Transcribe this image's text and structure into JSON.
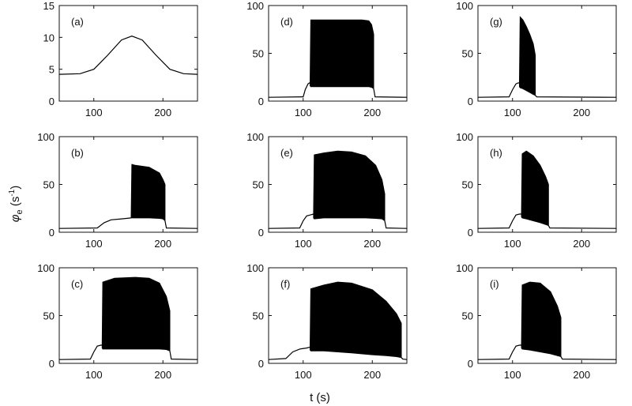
{
  "figure": {
    "ylabel": {
      "phi": "φ",
      "sub": "e",
      "unit_open": " (s",
      "exp": "-1",
      "unit_close": ")"
    },
    "xlabel": "t (s)"
  },
  "chart_data": [
    {
      "panel": "(a)",
      "type": "line",
      "xlim": [
        50,
        250
      ],
      "ylim": [
        0,
        15
      ],
      "xticks": [
        "100",
        "200"
      ],
      "yticks": [
        "0",
        "5",
        "10",
        "15"
      ],
      "series": [
        {
          "x": [
            50,
            80,
            100,
            120,
            140,
            155,
            170,
            190,
            210,
            230,
            250
          ],
          "y": [
            4.2,
            4.3,
            5.0,
            7.2,
            9.6,
            10.2,
            9.6,
            7.2,
            5.0,
            4.3,
            4.2
          ]
        }
      ]
    },
    {
      "panel": "(b)",
      "type": "area",
      "xlim": [
        50,
        250
      ],
      "ylim": [
        0,
        100
      ],
      "xticks": [
        "100",
        "200"
      ],
      "yticks": [
        "0",
        "50",
        "100"
      ],
      "baseline": {
        "x": [
          50,
          105,
          115,
          125,
          140,
          154
        ],
        "y": [
          4,
          4.5,
          10,
          13,
          14,
          15
        ]
      },
      "band": {
        "x": [
          154,
          155,
          160,
          180,
          195,
          200,
          203
        ],
        "upper": [
          15,
          71,
          70,
          68,
          62,
          55,
          50
        ],
        "lower": [
          15,
          15,
          15,
          15,
          14.5,
          14,
          12
        ]
      },
      "tail": {
        "x": [
          203,
          205,
          250
        ],
        "y": [
          12,
          4.5,
          4
        ]
      }
    },
    {
      "panel": "(c)",
      "type": "area",
      "xlim": [
        50,
        250
      ],
      "ylim": [
        0,
        100
      ],
      "xticks": [
        "100",
        "200"
      ],
      "yticks": [
        "0",
        "50",
        "100"
      ],
      "baseline": {
        "x": [
          50,
          95,
          100,
          105,
          110,
          112
        ],
        "y": [
          4,
          4.5,
          12,
          18,
          19,
          19
        ]
      },
      "band": {
        "x": [
          112,
          113,
          130,
          160,
          180,
          195,
          205,
          210
        ],
        "upper": [
          19,
          85,
          89,
          90,
          89,
          84,
          70,
          55
        ],
        "lower": [
          16,
          15,
          15,
          15,
          15,
          15,
          14.5,
          13
        ]
      },
      "tail": {
        "x": [
          210,
          212,
          250
        ],
        "y": [
          13,
          4.5,
          4
        ]
      }
    },
    {
      "panel": "(d)",
      "type": "area",
      "xlim": [
        50,
        250
      ],
      "ylim": [
        0,
        100
      ],
      "xticks": [
        "100",
        "200"
      ],
      "yticks": [
        "0",
        "50",
        "100"
      ],
      "baseline": {
        "x": [
          50,
          100,
          103,
          107,
          109,
          110
        ],
        "y": [
          4,
          4.5,
          12,
          18,
          19,
          19
        ]
      },
      "band": {
        "x": [
          110,
          111,
          130,
          160,
          185,
          195,
          199,
          202
        ],
        "upper": [
          19,
          85,
          85,
          85,
          85,
          84,
          80,
          70
        ],
        "lower": [
          16,
          15,
          15,
          15,
          15,
          15,
          14.5,
          13
        ]
      },
      "tail": {
        "x": [
          202,
          204,
          250
        ],
        "y": [
          13,
          4.5,
          4
        ]
      }
    },
    {
      "panel": "(e)",
      "type": "area",
      "xlim": [
        50,
        250
      ],
      "ylim": [
        0,
        100
      ],
      "xticks": [
        "100",
        "200"
      ],
      "yticks": [
        "0",
        "50",
        "100"
      ],
      "baseline": {
        "x": [
          50,
          95,
          100,
          105,
          110,
          115
        ],
        "y": [
          4,
          4.5,
          12,
          17,
          18,
          19
        ]
      },
      "band": {
        "x": [
          115,
          116,
          130,
          150,
          170,
          190,
          205,
          214,
          218
        ],
        "upper": [
          19,
          81,
          83,
          85,
          84,
          80,
          70,
          55,
          40
        ],
        "lower": [
          15,
          14,
          15,
          15,
          15,
          15,
          14.5,
          14,
          12
        ]
      },
      "tail": {
        "x": [
          218,
          220,
          250
        ],
        "y": [
          12,
          4.5,
          4
        ]
      }
    },
    {
      "panel": "(f)",
      "type": "area",
      "xlim": [
        50,
        250
      ],
      "ylim": [
        0,
        100
      ],
      "xticks": [
        "100",
        "200"
      ],
      "yticks": [
        "0",
        "50",
        "100"
      ],
      "baseline": {
        "x": [
          50,
          75,
          85,
          95,
          105,
          110
        ],
        "y": [
          4,
          5,
          12,
          15,
          16,
          17
        ]
      },
      "band": {
        "x": [
          110,
          111,
          130,
          150,
          170,
          200,
          220,
          235,
          242
        ],
        "upper": [
          17,
          78,
          82,
          85,
          84,
          77,
          65,
          52,
          42
        ],
        "lower": [
          14,
          13,
          13,
          12,
          11,
          9,
          8,
          7,
          6
        ]
      },
      "tail": {
        "x": [
          242,
          244,
          250
        ],
        "y": [
          6,
          4.5,
          4
        ]
      }
    },
    {
      "panel": "(g)",
      "type": "area",
      "xlim": [
        50,
        250
      ],
      "ylim": [
        0,
        100
      ],
      "xticks": [
        "100",
        "200"
      ],
      "yticks": [
        "0",
        "50",
        "100"
      ],
      "baseline": {
        "x": [
          50,
          95,
          100,
          105,
          108,
          110
        ],
        "y": [
          4,
          4.5,
          12,
          18,
          19,
          19
        ]
      },
      "band": {
        "x": [
          110,
          111,
          115,
          120,
          125,
          130,
          133
        ],
        "upper": [
          19,
          88,
          85,
          78,
          70,
          60,
          48
        ],
        "lower": [
          15,
          14,
          13,
          11,
          9,
          7,
          6
        ]
      },
      "tail": {
        "x": [
          133,
          135,
          250
        ],
        "y": [
          6,
          4.5,
          4
        ]
      }
    },
    {
      "panel": "(h)",
      "type": "area",
      "xlim": [
        50,
        250
      ],
      "ylim": [
        0,
        100
      ],
      "xticks": [
        "100",
        "200"
      ],
      "yticks": [
        "0",
        "50",
        "100"
      ],
      "baseline": {
        "x": [
          50,
          95,
          100,
          105,
          110,
          113
        ],
        "y": [
          4,
          4.5,
          12,
          18,
          19,
          19
        ]
      },
      "band": {
        "x": [
          113,
          114,
          120,
          130,
          140,
          148,
          152
        ],
        "upper": [
          19,
          82,
          85,
          80,
          70,
          58,
          50
        ],
        "lower": [
          16,
          15,
          14,
          12,
          10,
          8,
          7
        ]
      },
      "tail": {
        "x": [
          152,
          154,
          250
        ],
        "y": [
          7,
          4.5,
          4
        ]
      }
    },
    {
      "panel": "(i)",
      "type": "area",
      "xlim": [
        50,
        250
      ],
      "ylim": [
        0,
        100
      ],
      "xticks": [
        "100",
        "200"
      ],
      "yticks": [
        "0",
        "50",
        "100"
      ],
      "baseline": {
        "x": [
          50,
          95,
          100,
          105,
          110,
          113
        ],
        "y": [
          4,
          4.5,
          12,
          18,
          19,
          19
        ]
      },
      "band": {
        "x": [
          113,
          114,
          125,
          140,
          155,
          165,
          170
        ],
        "upper": [
          19,
          82,
          85,
          84,
          75,
          60,
          48
        ],
        "lower": [
          16,
          15,
          14,
          12,
          10,
          8,
          7
        ]
      },
      "tail": {
        "x": [
          170,
          172,
          250
        ],
        "y": [
          7,
          4.5,
          4
        ]
      }
    }
  ]
}
